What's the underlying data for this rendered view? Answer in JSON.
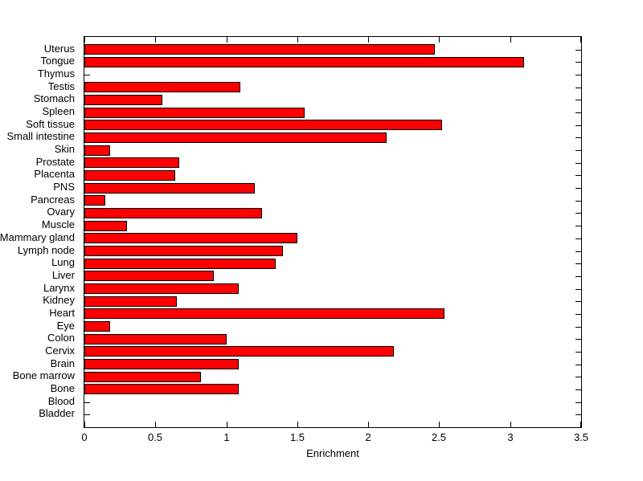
{
  "figure": {
    "background_color": "#ffffff",
    "axis_color": "#000000",
    "text_color": "#000000"
  },
  "chart_data": {
    "type": "bar",
    "orientation": "horizontal",
    "title": "",
    "xlabel": "Enrichment",
    "ylabel": "",
    "xlim": [
      0,
      3.5
    ],
    "xticks": [
      0,
      0.5,
      1,
      1.5,
      2,
      2.5,
      3,
      3.5
    ],
    "xtick_labels": [
      "0",
      "0.5",
      "1",
      "1.5",
      "2",
      "2.5",
      "3",
      "3.5"
    ],
    "grid": false,
    "legend": null,
    "bar_color": "#ff0000",
    "bar_edge_color": "#000000",
    "categories": [
      "Uterus",
      "Tongue",
      "Thymus",
      "Testis",
      "Stomach",
      "Spleen",
      "Soft tissue",
      "Small intestine",
      "Skin",
      "Prostate",
      "Placenta",
      "PNS",
      "Pancreas",
      "Ovary",
      "Muscle",
      "Mammary gland",
      "Lymph node",
      "Lung",
      "Liver",
      "Larynx",
      "Kidney",
      "Heart",
      "Eye",
      "Colon",
      "Cervix",
      "Brain",
      "Bone marrow",
      "Bone",
      "Blood",
      "Bladder"
    ],
    "values": [
      2.47,
      3.1,
      0,
      1.1,
      0.55,
      1.55,
      2.52,
      2.13,
      0.18,
      0.67,
      0.64,
      1.2,
      0.15,
      1.25,
      0.3,
      1.5,
      1.4,
      1.35,
      0.91,
      1.09,
      0.65,
      2.54,
      0.18,
      1.0,
      2.18,
      1.09,
      0.82,
      1.09,
      0,
      0
    ]
  }
}
